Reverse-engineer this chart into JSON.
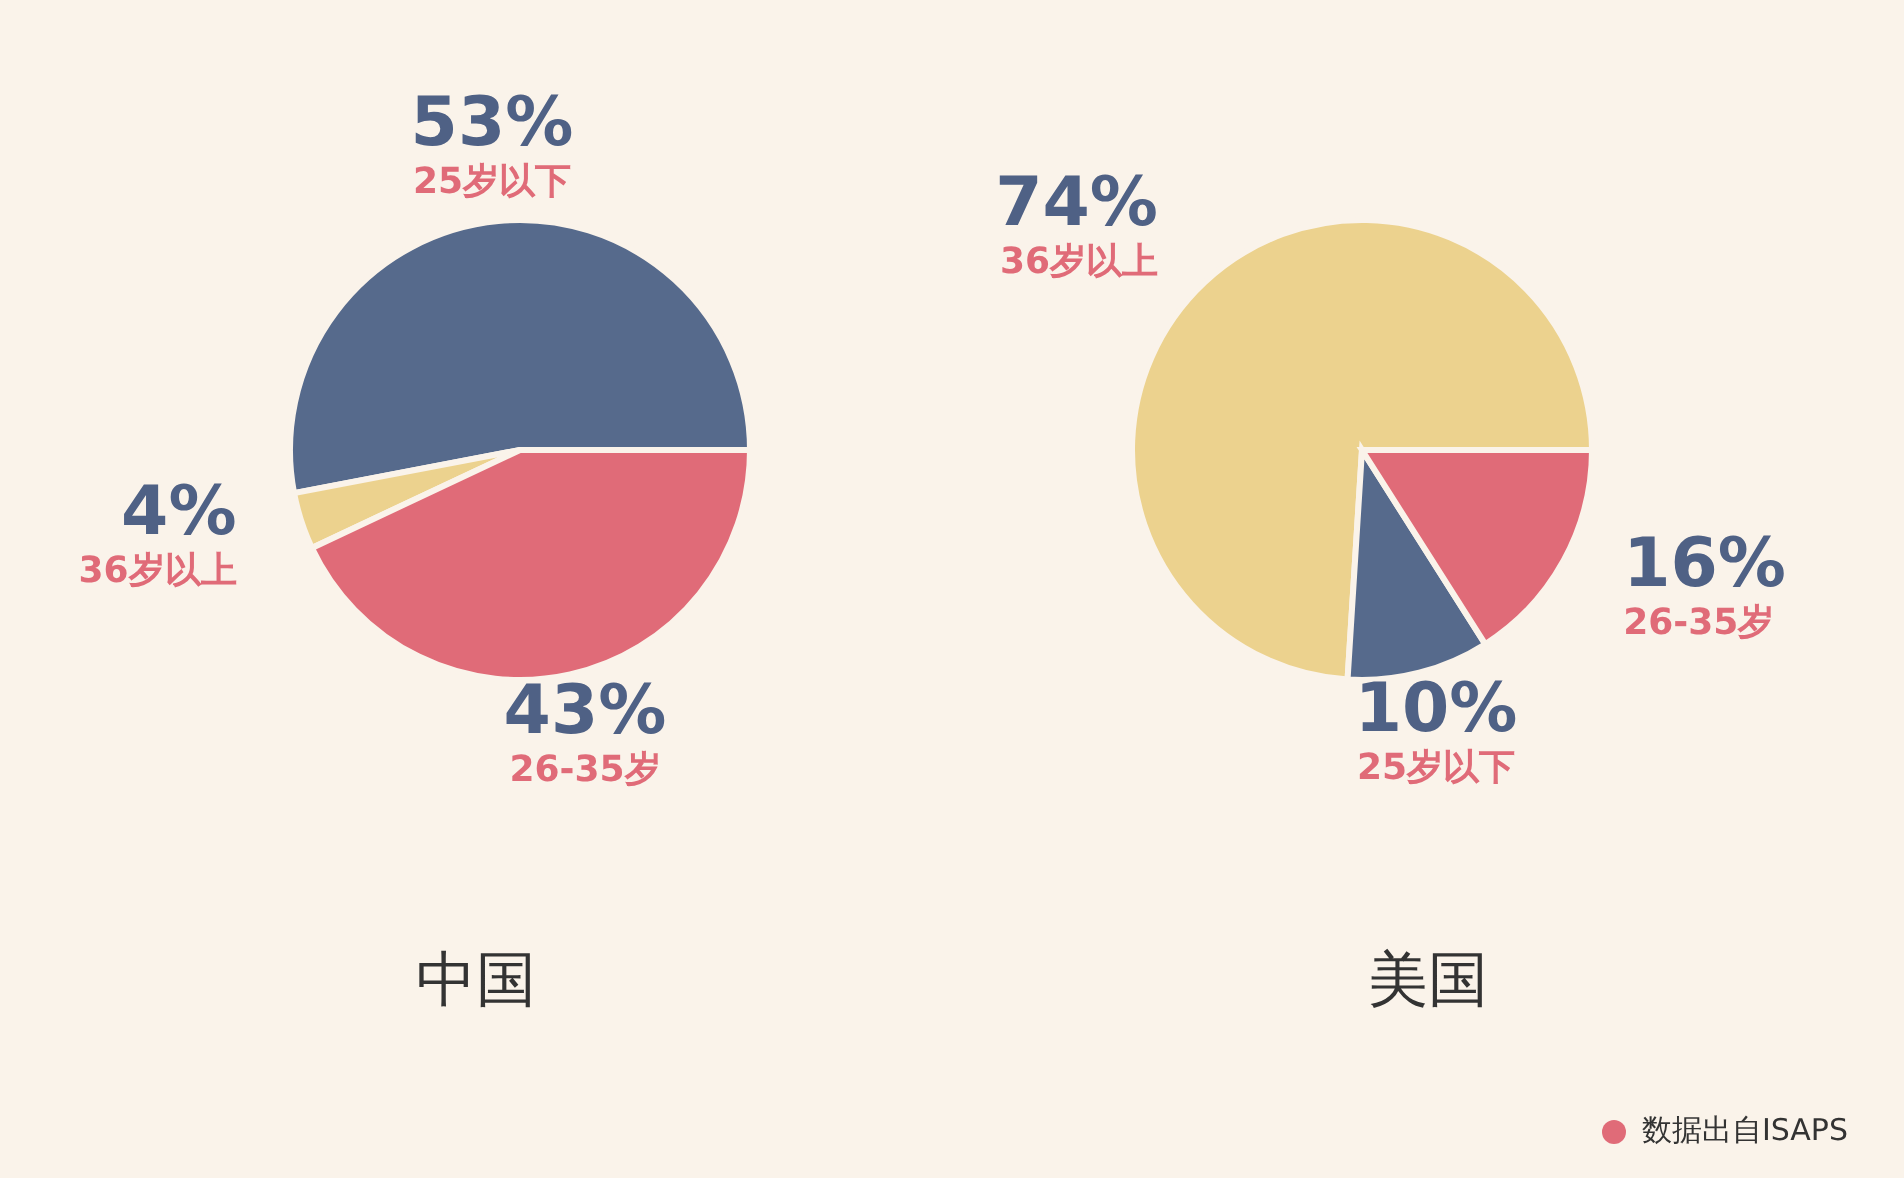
{
  "chart_data": [
    {
      "type": "pie",
      "title": "中国",
      "categories": [
        "25岁以下",
        "36岁以上",
        "26-35岁"
      ],
      "values": [
        53,
        4,
        43
      ],
      "value_labels": [
        "53%",
        "4%",
        "43%"
      ],
      "colors": [
        "#566a8c",
        "#ecd28e",
        "#e06b78"
      ],
      "legend": false
    },
    {
      "type": "pie",
      "title": "美国",
      "categories": [
        "36岁以上",
        "25岁以下",
        "26-35岁"
      ],
      "values": [
        74,
        10,
        16
      ],
      "value_labels": [
        "74%",
        "10%",
        "16%"
      ],
      "colors": [
        "#ecd28e",
        "#566a8c",
        "#e06b78"
      ],
      "legend": false,
      "annotations": [
        "数据出自ISAPS"
      ]
    }
  ]
}
